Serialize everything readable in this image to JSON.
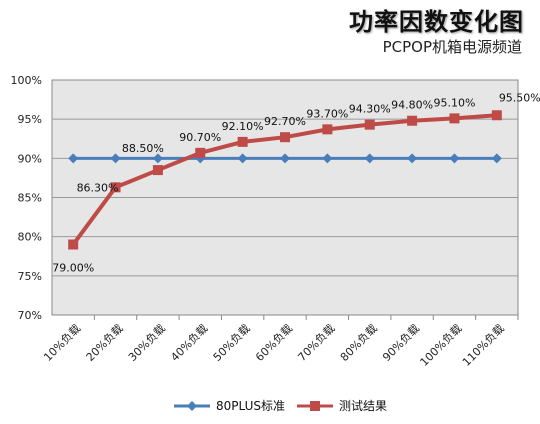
{
  "title": "功率因数变化图",
  "subtitle": "PCPOP机箱电源频道",
  "colors": {
    "standard": "#4a7ebb",
    "test": "#be4b48",
    "plot_bg": "#e6e6e6",
    "grid": "#9a9a9a"
  },
  "chart_data": {
    "type": "line",
    "categories": [
      "10%负载",
      "20%负载",
      "30%负载",
      "40%负载",
      "50%负载",
      "60%负载",
      "70%负载",
      "80%负载",
      "90%负载",
      "100%负载",
      "110%负载"
    ],
    "series": [
      {
        "name": "80PLUS标准",
        "values": [
          90,
          90,
          90,
          90,
          90,
          90,
          90,
          90,
          90,
          90,
          90
        ],
        "marker": "diamond"
      },
      {
        "name": "测试结果",
        "values": [
          79.0,
          86.3,
          88.5,
          90.7,
          92.1,
          92.7,
          93.7,
          94.3,
          94.8,
          95.1,
          95.5
        ],
        "labels": [
          "79.00%",
          "86.30%",
          "88.50%",
          "90.70%",
          "92.10%",
          "92.70%",
          "93.70%",
          "94.30%",
          "94.80%",
          "95.10%",
          "95.50%"
        ],
        "marker": "square"
      }
    ],
    "ylim": [
      70,
      100
    ],
    "yticks": [
      "70%",
      "75%",
      "80%",
      "85%",
      "90%",
      "95%",
      "100%"
    ],
    "grid": true,
    "legend": "bottom"
  }
}
